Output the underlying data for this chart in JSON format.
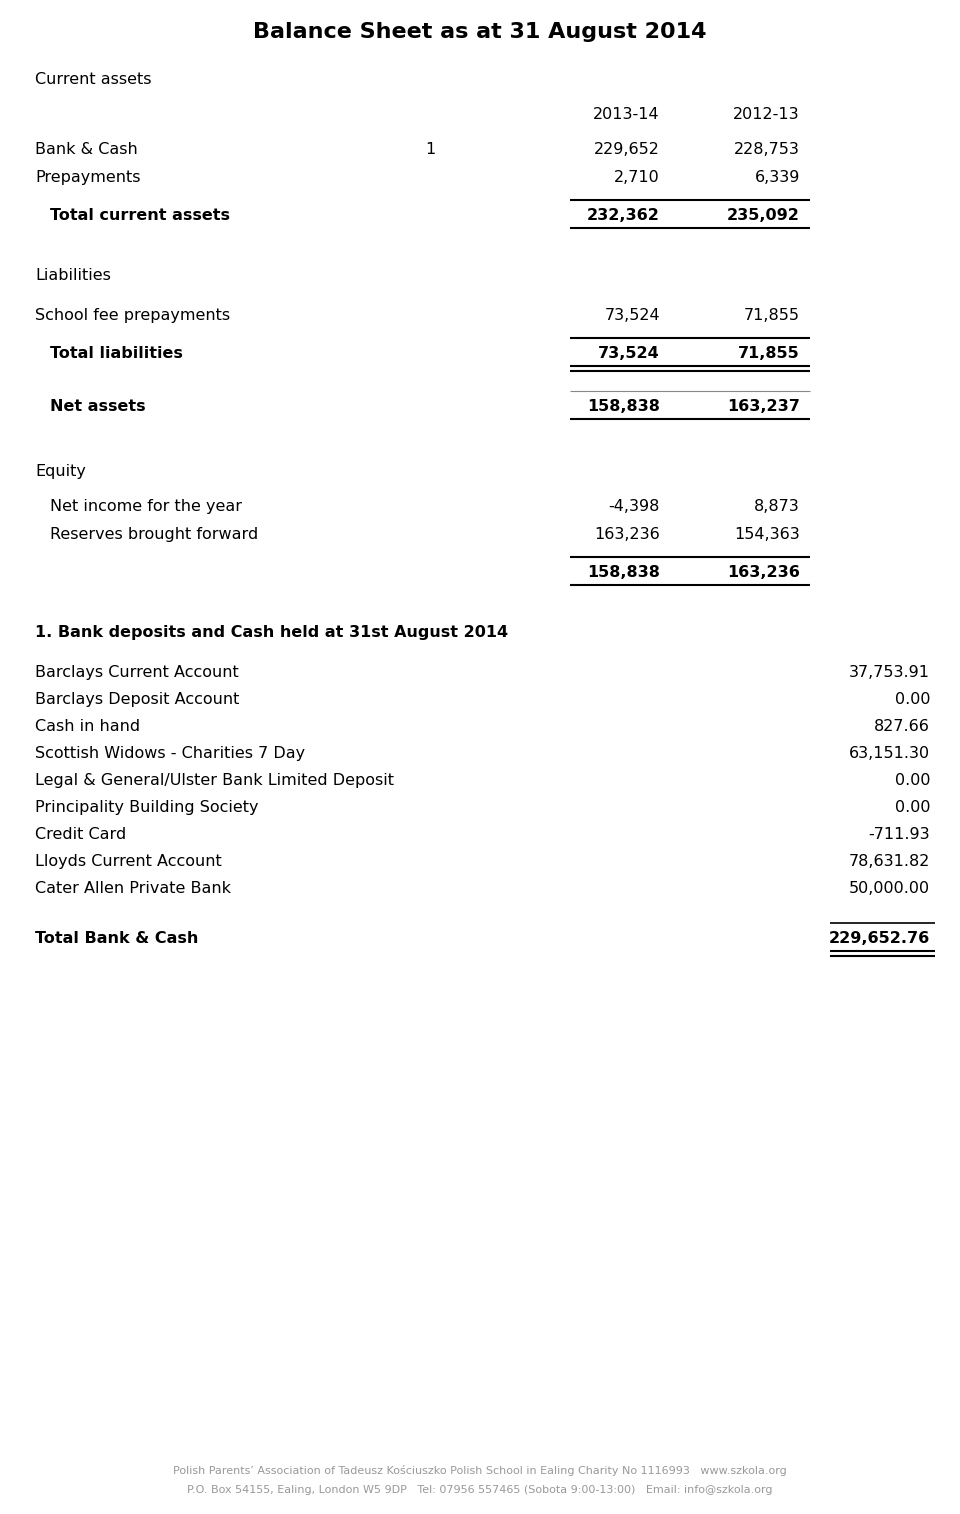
{
  "title": "Balance Sheet as at 31 August 2014",
  "bg_color": "#ffffff",
  "footer_color": "#aaaaaa",
  "footer_line1": "Polish Parents’ Association of Tadeusz Kościuszko Polish School in Ealing Charity No 1116993   www.szkola.org",
  "footer_line2": "P.O. Box 54155, Ealing, London W5 9DP   Tel: 07956 557465 (Sobota 9:00-13:00)   Email: info@szkola.org",
  "section2_header": "1. Bank deposits and Cash held at 31st August 2014",
  "section2_rows": [
    {
      "label": "Barclays Current Account",
      "val": "37,753.91"
    },
    {
      "label": "Barclays Deposit Account",
      "val": "0.00"
    },
    {
      "label": "Cash in hand",
      "val": "827.66"
    },
    {
      "label": "Scottish Widows - Charities 7 Day",
      "val": "63,151.30"
    },
    {
      "label": "Legal & General/Ulster Bank Limited Deposit",
      "val": "0.00"
    },
    {
      "label": "Principality Building Society",
      "val": "0.00"
    },
    {
      "label": "Credit Card",
      "val": "-711.93"
    },
    {
      "label": "Lloyds Current Account",
      "val": "78,631.82"
    },
    {
      "label": "Cater Allen Private Bank",
      "val": "50,000.00"
    }
  ],
  "section2_total_label": "Total Bank & Cash",
  "section2_total_val": "229,652.76"
}
